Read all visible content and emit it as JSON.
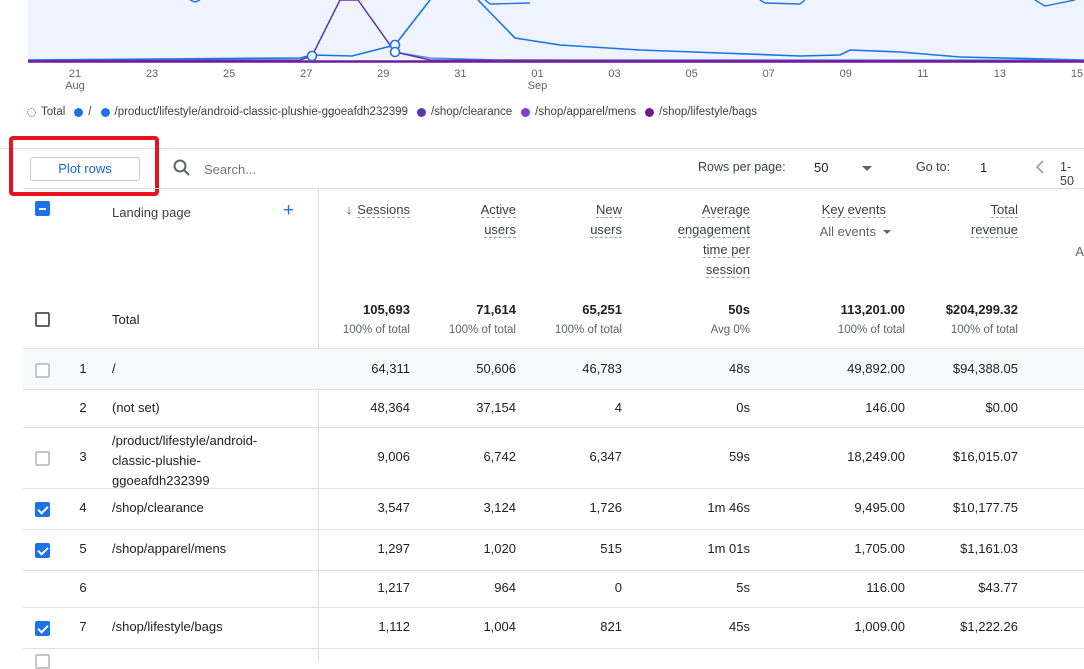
{
  "chart_data": {
    "type": "line",
    "x_ticks": [
      "21",
      "23",
      "25",
      "27",
      "29",
      "31",
      "01",
      "03",
      "05",
      "07",
      "09",
      "11",
      "13",
      "15"
    ],
    "x_subticks": {
      "21": "Aug",
      "01": "Sep"
    },
    "colors": {
      "total": "#1a73e8",
      "root": "#1a73e8",
      "plushie": "#4285f4",
      "clearance": "#5e35b1",
      "mens": "#7b1fa2",
      "bags": "#6a1b9a"
    }
  },
  "legend": [
    {
      "label": "Total",
      "icon": "dashed-circle",
      "color": "#1a73e8"
    },
    {
      "label": "/",
      "icon": "dot",
      "color": "#1a73e8"
    },
    {
      "label": "/product/lifestyle/android-classic-plushie-ggoeafdh232399",
      "icon": "dot",
      "color": "#1a73e8"
    },
    {
      "label": "/shop/clearance",
      "icon": "dot",
      "color": "#5e35b1"
    },
    {
      "label": "/shop/apparel/mens",
      "icon": "dot",
      "color": "#7e3fd0"
    },
    {
      "label": "/shop/lifestyle/bags",
      "icon": "dot",
      "color": "#6a1b9a"
    }
  ],
  "toolbar": {
    "plot_rows_label": "Plot rows",
    "search_placeholder": "Search...",
    "rows_per_page_label": "Rows per page:",
    "rows_per_page_value": "50",
    "goto_label": "Go to:",
    "goto_value": "1",
    "range_text": "1-50"
  },
  "columns": {
    "landing_page": "Landing page",
    "sessions": "Sessions",
    "active_users_1": "Active",
    "active_users_2": "users",
    "new_users_1": "New",
    "new_users_2": "users",
    "aet_1": "Average",
    "aet_2": "engagement",
    "aet_3": "time per",
    "aet_4": "session",
    "key_events": "Key events",
    "key_events_filter": "All events",
    "revenue_1": "Total",
    "revenue_2": "revenue",
    "extra_truncated": "A"
  },
  "total": {
    "label": "Total",
    "sessions": "105,693",
    "sessions_sub": "100% of total",
    "active_users": "71,614",
    "active_users_sub": "100% of total",
    "new_users": "65,251",
    "new_users_sub": "100% of total",
    "aet": "50s",
    "aet_sub": "Avg 0%",
    "key_events": "113,201.00",
    "key_events_sub": "100% of total",
    "revenue": "$204,299.32",
    "revenue_sub": "100% of total"
  },
  "rows": [
    {
      "n": "1",
      "page": "/",
      "sessions": "64,311",
      "active": "50,606",
      "new": "46,783",
      "aet": "48s",
      "key": "49,892.00",
      "rev": "$94,388.05",
      "checked": false
    },
    {
      "n": "2",
      "page": "(not set)",
      "sessions": "48,364",
      "active": "37,154",
      "new": "4",
      "aet": "0s",
      "key": "146.00",
      "rev": "$0.00",
      "checked": null
    },
    {
      "n": "3",
      "page_1": "/product/lifestyle/android-",
      "page_2": "classic-plushie-",
      "page_3": "ggoeafdh232399",
      "sessions": "9,006",
      "active": "6,742",
      "new": "6,347",
      "aet": "59s",
      "key": "18,249.00",
      "rev": "$16,015.07",
      "checked": false
    },
    {
      "n": "4",
      "page": "/shop/clearance",
      "sessions": "3,547",
      "active": "3,124",
      "new": "1,726",
      "aet": "1m 46s",
      "key": "9,495.00",
      "rev": "$10,177.75",
      "checked": true
    },
    {
      "n": "5",
      "page": "/shop/apparel/mens",
      "sessions": "1,297",
      "active": "1,020",
      "new": "515",
      "aet": "1m 01s",
      "key": "1,705.00",
      "rev": "$1,161.03",
      "checked": true
    },
    {
      "n": "6",
      "page": "",
      "sessions": "1,217",
      "active": "964",
      "new": "0",
      "aet": "5s",
      "key": "116.00",
      "rev": "$43.77",
      "checked": null
    },
    {
      "n": "7",
      "page": "/shop/lifestyle/bags",
      "sessions": "1,112",
      "active": "1,004",
      "new": "821",
      "aet": "45s",
      "key": "1,009.00",
      "rev": "$1,222.26",
      "checked": true
    }
  ]
}
